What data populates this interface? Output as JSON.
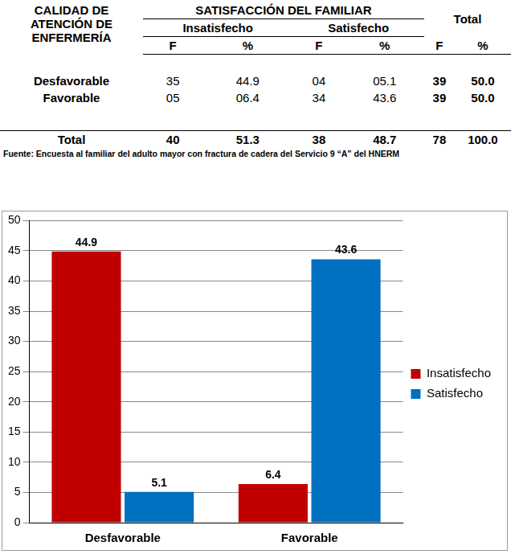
{
  "table": {
    "header": {
      "row_label": "CALIDAD DE ATENCIÓN DE ENFERMERÍA",
      "group": "SATISFACCIÓN DEL FAMILIAR",
      "subgroups": [
        "Insatisfecho",
        "Satisfecho"
      ],
      "total": "Total",
      "columns": [
        "F",
        "%",
        "F",
        "%",
        "F",
        "%"
      ]
    },
    "rows": [
      [
        "Desfavorable",
        "35",
        "44.9",
        "04",
        "05.1",
        "39",
        "50.0"
      ],
      [
        "Favorable",
        "05",
        "06.4",
        "34",
        "43.6",
        "39",
        "50.0"
      ]
    ],
    "total_row": [
      "Total",
      "40",
      "51.3",
      "38",
      "48.7",
      "78",
      "100.0"
    ]
  },
  "source": "Fuente: Encuesta al familiar del adulto mayor con fractura de cadera del Servicio 9 “A” del HNERM",
  "chart_data": {
    "type": "bar",
    "categories": [
      "Desfavorable",
      "Favorable"
    ],
    "series": [
      {
        "name": "Insatisfecho",
        "color": "#c00000",
        "values": [
          44.9,
          6.4
        ]
      },
      {
        "name": "Satisfecho",
        "color": "#0070c0",
        "values": [
          5.1,
          43.6
        ]
      }
    ],
    "ylim": [
      0,
      50
    ],
    "yticks": [
      0,
      5,
      10,
      15,
      20,
      25,
      30,
      35,
      40,
      45,
      50
    ],
    "grid": true,
    "legend": "right",
    "data_labels": true
  }
}
